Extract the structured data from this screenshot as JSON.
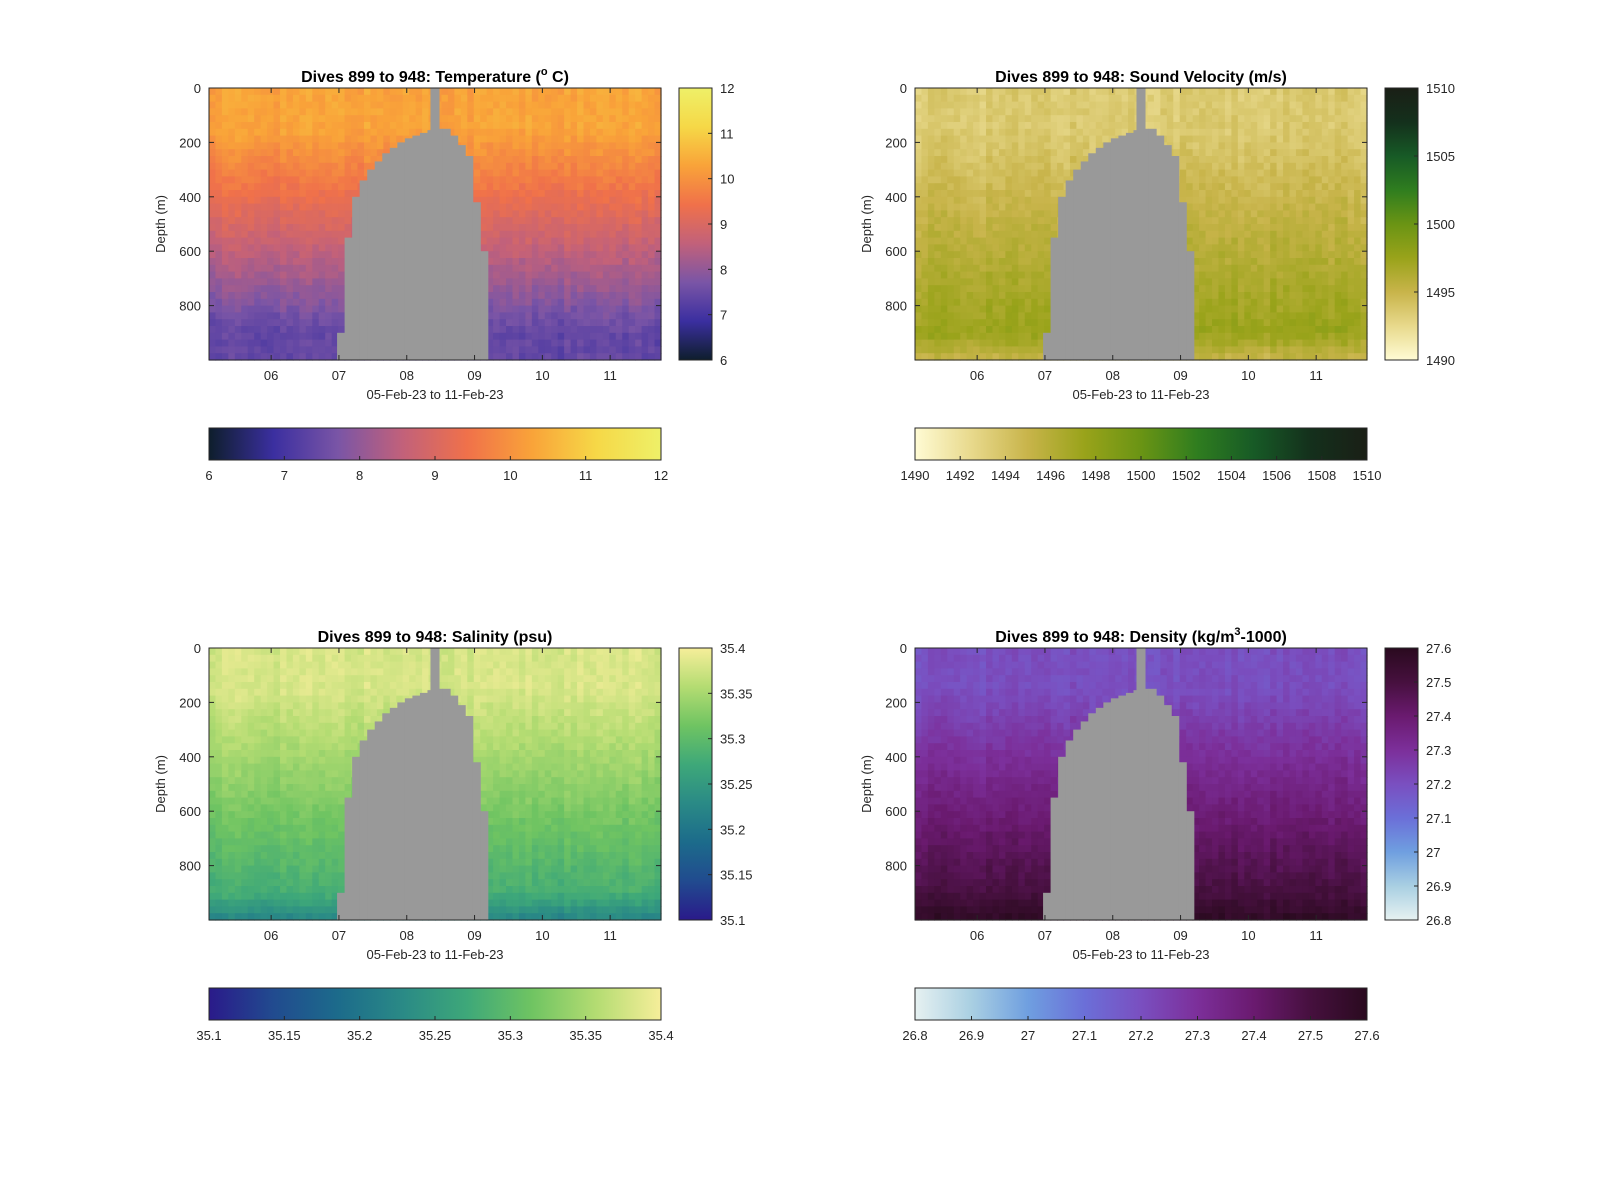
{
  "figure": {
    "background": "#ffffff"
  },
  "chart_data": [
    {
      "type": "heatmap",
      "title": "Dives 899 to 948: Temperature (",
      "title_mid": "o",
      "title_tail": " C)",
      "xlabel": "05-Feb-23 to 11-Feb-23",
      "ylabel": "Depth (m)",
      "x_range": [
        "2023-02-05T02:00",
        "2023-02-11T18:00"
      ],
      "x_ticks": [
        "06",
        "07",
        "08",
        "09",
        "10",
        "11"
      ],
      "y_range": [
        0,
        1000
      ],
      "y_reversed": true,
      "y_ticks": [
        "0",
        "200",
        "400",
        "600",
        "800"
      ],
      "missing_color": "#999999",
      "colormap": "thermal",
      "colorbar_range": [
        6,
        12
      ],
      "colorbar_ticks": [
        "6",
        "7",
        "8",
        "9",
        "10",
        "11",
        "12"
      ],
      "colorbar_stops": [
        "#0e1e2c",
        "#3b2fa0",
        "#7a55a6",
        "#c2617a",
        "#f0714a",
        "#f9a339",
        "#f6d847",
        "#eef068"
      ],
      "value_surface": {
        "surface": 10.3,
        "deep": 7.4,
        "mixed_layer_depth": 150
      },
      "data_gap_bottom_depth": [
        [
          0.0,
          1000
        ],
        [
          0.278,
          1000
        ],
        [
          0.285,
          900
        ],
        [
          0.3,
          550
        ],
        [
          0.31,
          480
        ],
        [
          0.32,
          400
        ],
        [
          0.34,
          340
        ],
        [
          0.355,
          300
        ],
        [
          0.37,
          270
        ],
        [
          0.385,
          240
        ],
        [
          0.4,
          220
        ],
        [
          0.415,
          200
        ],
        [
          0.43,
          185
        ],
        [
          0.445,
          175
        ],
        [
          0.46,
          165
        ],
        [
          0.475,
          160
        ],
        [
          0.49,
          155
        ],
        [
          0.5,
          150
        ],
        [
          0.51,
          150
        ],
        [
          0.525,
          155
        ],
        [
          0.54,
          175
        ],
        [
          0.555,
          210
        ],
        [
          0.57,
          250
        ],
        [
          0.58,
          300
        ],
        [
          0.59,
          420
        ],
        [
          0.6,
          600
        ],
        [
          0.61,
          870
        ],
        [
          0.62,
          1000
        ],
        [
          1.0,
          1000
        ]
      ],
      "data_gap_top_depth": [
        [
          0.0,
          1000
        ],
        [
          0.278,
          1000
        ],
        [
          0.285,
          0
        ],
        [
          0.62,
          0
        ],
        [
          1.0,
          1000
        ]
      ]
    },
    {
      "type": "heatmap",
      "title": "Dives 899 to 948: Sound Velocity (m/s)",
      "xlabel": "05-Feb-23 to 11-Feb-23",
      "ylabel": "Depth (m)",
      "x_range": [
        "2023-02-05T02:00",
        "2023-02-11T18:00"
      ],
      "x_ticks": [
        "06",
        "07",
        "08",
        "09",
        "10",
        "11"
      ],
      "y_range": [
        0,
        1000
      ],
      "y_reversed": true,
      "y_ticks": [
        "0",
        "200",
        "400",
        "600",
        "800"
      ],
      "missing_color": "#999999",
      "colormap": "speed",
      "colorbar_range": [
        1490,
        1510
      ],
      "colorbar_ticks": [
        "1490",
        "1495",
        "1500",
        "1505",
        "1510"
      ],
      "colorbar_h_ticks": [
        "1490",
        "1492",
        "1494",
        "1496",
        "1498",
        "1500",
        "1502",
        "1504",
        "1506",
        "1508",
        "1510"
      ],
      "colorbar_stops": [
        "#fffbd4",
        "#e8d98c",
        "#c8b44a",
        "#99a31a",
        "#6a9414",
        "#2f7d1f",
        "#175a26",
        "#14301c",
        "#1a1f16"
      ],
      "value_surface": {
        "surface": 1493.5,
        "deep": 1497.5,
        "bottom": 1495
      }
    },
    {
      "type": "heatmap",
      "title": "Dives 899 to 948: Salinity (psu)",
      "xlabel": "05-Feb-23 to 11-Feb-23",
      "ylabel": "Depth (m)",
      "x_range": [
        "2023-02-05T02:00",
        "2023-02-11T18:00"
      ],
      "x_ticks": [
        "06",
        "07",
        "08",
        "09",
        "10",
        "11"
      ],
      "y_range": [
        0,
        1000
      ],
      "y_reversed": true,
      "y_ticks": [
        "0",
        "200",
        "400",
        "600",
        "800"
      ],
      "missing_color": "#999999",
      "colormap": "haline",
      "colorbar_range": [
        35.1,
        35.4
      ],
      "colorbar_ticks": [
        "35.1",
        "35.15",
        "35.2",
        "35.25",
        "35.3",
        "35.35",
        "35.4"
      ],
      "colorbar_stops": [
        "#2a1a8a",
        "#214b8f",
        "#1c6b8b",
        "#2a8a86",
        "#3ea879",
        "#6fc462",
        "#b4dc72",
        "#f6ee9a"
      ],
      "value_surface": {
        "surface": 35.38,
        "deep": 35.28,
        "bottom": 35.22
      }
    },
    {
      "type": "heatmap",
      "title": "Dives 899 to 948: Density (kg/m",
      "title_mid": "3",
      "title_tail": "-1000)",
      "xlabel": "05-Feb-23 to 11-Feb-23",
      "ylabel": "Depth (m)",
      "x_range": [
        "2023-02-05T02:00",
        "2023-02-11T18:00"
      ],
      "x_ticks": [
        "06",
        "07",
        "08",
        "09",
        "10",
        "11"
      ],
      "y_range": [
        0,
        1000
      ],
      "y_reversed": true,
      "y_ticks": [
        "0",
        "200",
        "400",
        "600",
        "800"
      ],
      "missing_color": "#999999",
      "colormap": "dense",
      "colorbar_range": [
        26.8,
        27.6
      ],
      "colorbar_ticks": [
        "26.8",
        "26.9",
        "27",
        "27.1",
        "27.2",
        "27.3",
        "27.4",
        "27.5",
        "27.6"
      ],
      "colorbar_stops": [
        "#e6f1f1",
        "#a9cfe2",
        "#6f9fe0",
        "#6b6fd8",
        "#7a4fc0",
        "#7c2f9a",
        "#6a1a6f",
        "#46103e",
        "#2a0a1f"
      ],
      "value_surface": {
        "surface": 27.2,
        "deep": 27.5,
        "bottom": 27.58
      }
    }
  ]
}
